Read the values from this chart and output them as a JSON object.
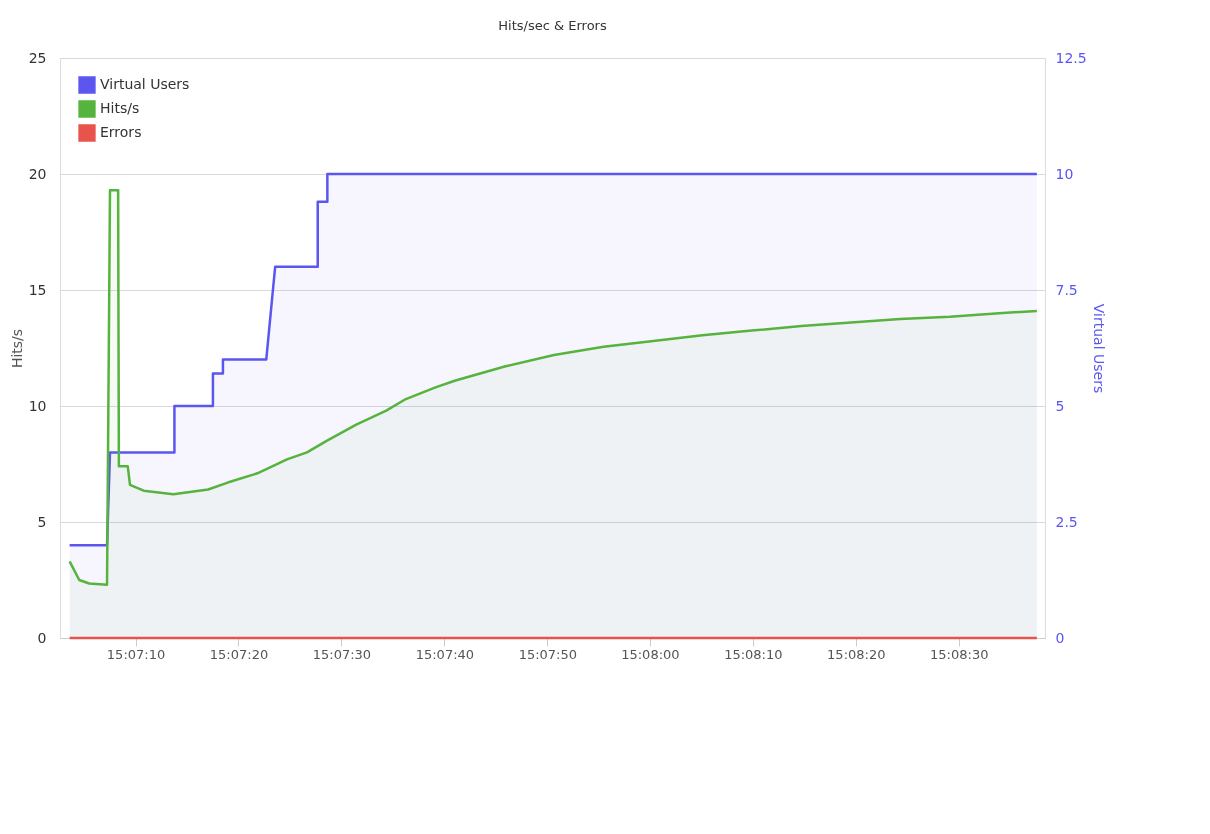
{
  "chart_data": {
    "type": "area",
    "title": "Hits/sec & Errors",
    "ylabel": "Hits/s",
    "y2label": "Virtual Users",
    "xlim": [
      15.1174,
      15.144
    ],
    "xticks": [
      {
        "value": 15.11944,
        "label": "15:07:10"
      },
      {
        "value": 15.12222,
        "label": "15:07:20"
      },
      {
        "value": 15.125,
        "label": "15:07:30"
      },
      {
        "value": 15.12778,
        "label": "15:07:40"
      },
      {
        "value": 15.13056,
        "label": "15:07:50"
      },
      {
        "value": 15.13333,
        "label": "15:08:00"
      },
      {
        "value": 15.13611,
        "label": "15:08:10"
      },
      {
        "value": 15.13889,
        "label": "15:08:20"
      },
      {
        "value": 15.14167,
        "label": "15:08:30"
      }
    ],
    "ylim": [
      0,
      25
    ],
    "yticks": [
      0,
      5,
      10,
      15,
      20,
      25
    ],
    "y2lim": [
      0,
      12.5
    ],
    "y2ticks": [
      0,
      2.5,
      5,
      7.5,
      10,
      12.5
    ],
    "grid": "y",
    "legend": "top left",
    "series": [
      {
        "name": "Virtual Users",
        "color": "#5b56f0",
        "axis": "y2",
        "x": [
          15.11766,
          15.11867,
          15.11875,
          15.12049,
          15.12049,
          15.12153,
          15.12153,
          15.1218,
          15.1218,
          15.12297,
          15.12321,
          15.12433,
          15.12436,
          15.12436,
          15.12462,
          15.12462,
          15.14378
        ],
        "values": [
          2,
          2,
          4,
          4,
          5,
          5,
          5.7,
          5.7,
          6,
          6,
          8,
          8,
          8,
          9.4,
          9.4,
          10,
          10
        ]
      },
      {
        "name": "Hits/s",
        "color": "#56b33d",
        "x": [
          15.11766,
          15.11792,
          15.11819,
          15.11867,
          15.11875,
          15.11897,
          15.11899,
          15.11923,
          15.11929,
          15.11966,
          15.12046,
          15.1214,
          15.12193,
          15.12273,
          15.12353,
          15.12407,
          15.1246,
          15.1254,
          15.12621,
          15.12674,
          15.12754,
          15.12808,
          15.12941,
          15.13074,
          15.13208,
          15.13342,
          15.13475,
          15.13608,
          15.13742,
          15.13876,
          15.14009,
          15.14143,
          15.14276,
          15.14378
        ],
        "values": [
          3.3,
          2.5,
          2.35,
          2.3,
          19.3,
          19.3,
          7.4,
          7.4,
          6.6,
          6.35,
          6.2,
          6.4,
          6.7,
          7.1,
          7.7,
          8.0,
          8.5,
          9.2,
          9.8,
          10.3,
          10.8,
          11.1,
          11.7,
          12.2,
          12.55,
          12.8,
          13.05,
          13.25,
          13.45,
          13.6,
          13.75,
          13.85,
          14.0,
          14.1
        ]
      },
      {
        "name": "Errors",
        "color": "#e8534b",
        "type": "line",
        "x": [
          15.11766,
          15.14378
        ],
        "values": [
          0,
          0
        ]
      }
    ]
  }
}
